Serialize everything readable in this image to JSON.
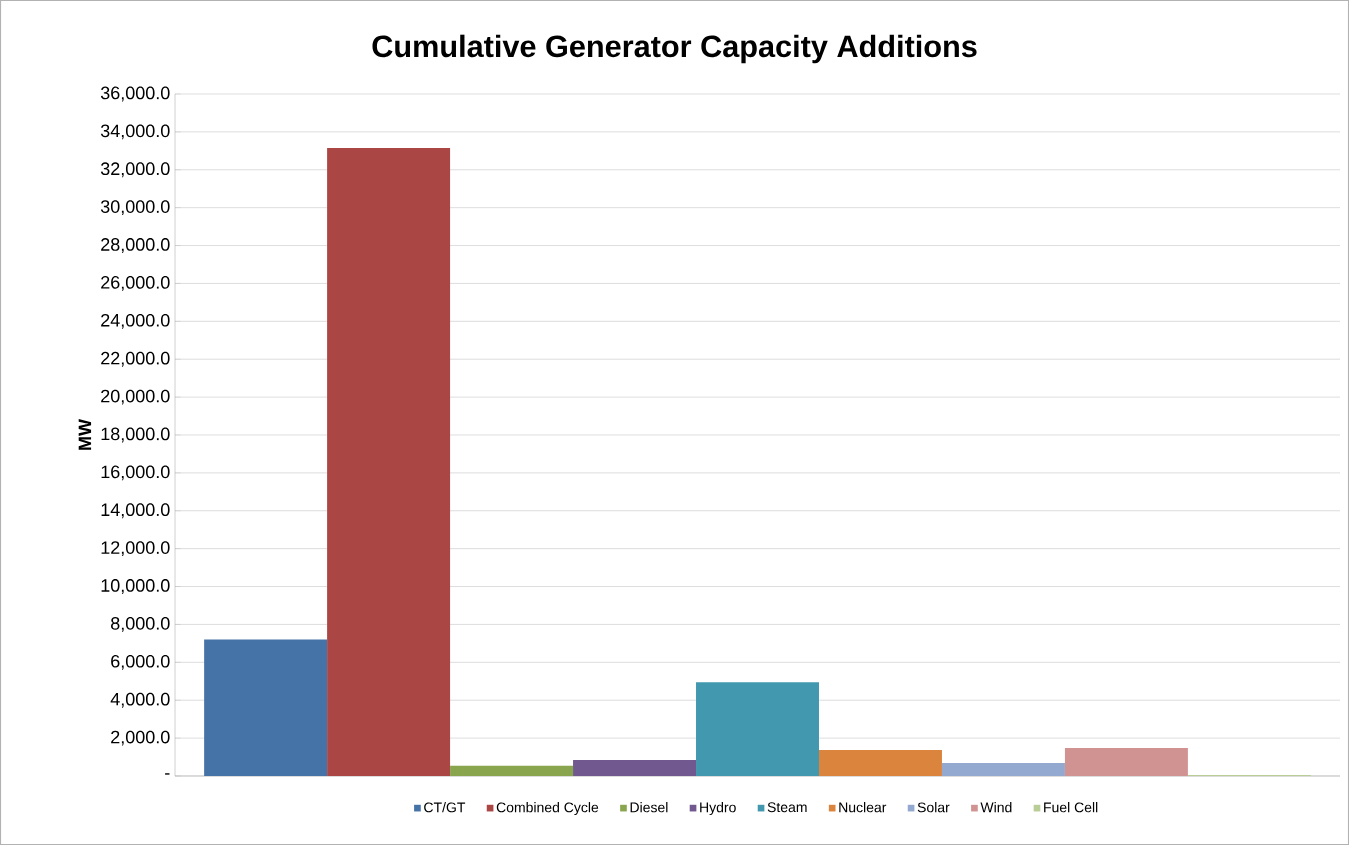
{
  "chart_data": {
    "type": "bar",
    "title": "Cumulative Generator Capacity Additions",
    "ylabel": "MW",
    "categories": [
      null
    ],
    "series": [
      {
        "name": "CT/GT",
        "color": "#4572a7",
        "values": [
          7200
        ]
      },
      {
        "name": "Combined Cycle",
        "color": "#aa4643",
        "values": [
          33150
        ]
      },
      {
        "name": "Diesel",
        "color": "#89a54e",
        "values": [
          550
        ]
      },
      {
        "name": "Hydro",
        "color": "#71588f",
        "values": [
          850
        ]
      },
      {
        "name": "Steam",
        "color": "#4198af",
        "values": [
          4950
        ]
      },
      {
        "name": "Nuclear",
        "color": "#db843d",
        "values": [
          1370
        ]
      },
      {
        "name": "Solar",
        "color": "#93a9cf",
        "values": [
          690
        ]
      },
      {
        "name": "Wind",
        "color": "#d19392",
        "values": [
          1480
        ]
      },
      {
        "name": "Fuel Cell",
        "color": "#b9cd96",
        "values": [
          50
        ]
      }
    ],
    "ylim": [
      0,
      36000
    ],
    "yticks": [
      {
        "value": 0,
        "label": "-"
      },
      {
        "value": 2000,
        "label": "2,000.0"
      },
      {
        "value": 4000,
        "label": "4,000.0"
      },
      {
        "value": 6000,
        "label": "6,000.0"
      },
      {
        "value": 8000,
        "label": "8,000.0"
      },
      {
        "value": 10000,
        "label": "10,000.0"
      },
      {
        "value": 12000,
        "label": "12,000.0"
      },
      {
        "value": 14000,
        "label": "14,000.0"
      },
      {
        "value": 16000,
        "label": "16,000.0"
      },
      {
        "value": 18000,
        "label": "18,000.0"
      },
      {
        "value": 20000,
        "label": "20,000.0"
      },
      {
        "value": 22000,
        "label": "22,000.0"
      },
      {
        "value": 24000,
        "label": "24,000.0"
      },
      {
        "value": 26000,
        "label": "26,000.0"
      },
      {
        "value": 28000,
        "label": "28,000.0"
      },
      {
        "value": 30000,
        "label": "30,000.0"
      },
      {
        "value": 32000,
        "label": "32,000.0"
      },
      {
        "value": 34000,
        "label": "34,000.0"
      },
      {
        "value": 36000,
        "label": "36,000.0"
      }
    ],
    "grid": "y",
    "legend": "bottom"
  }
}
